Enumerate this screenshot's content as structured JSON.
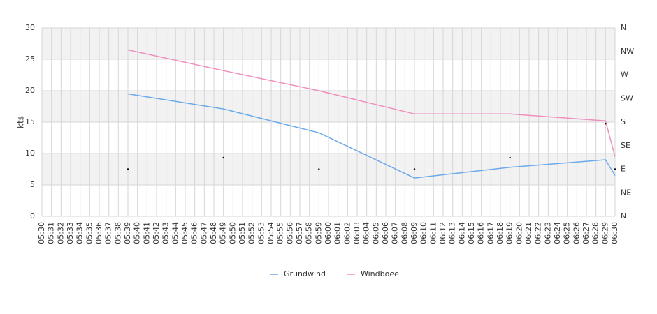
{
  "chart_data": {
    "type": "line",
    "y_label": "kts",
    "categories": [
      "05:30",
      "05:31",
      "05:32",
      "05:33",
      "05:34",
      "05:35",
      "05:36",
      "05:37",
      "05:38",
      "05:39",
      "05:40",
      "05:41",
      "05:42",
      "05:43",
      "05:44",
      "05:45",
      "05:46",
      "05:47",
      "05:48",
      "05:49",
      "05:50",
      "05:51",
      "05:52",
      "05:53",
      "05:54",
      "05:55",
      "05:56",
      "05:57",
      "05:58",
      "05:59",
      "06:00",
      "06:01",
      "06:02",
      "06:03",
      "06:04",
      "06:05",
      "06:06",
      "06:07",
      "06:08",
      "06:09",
      "06:10",
      "06:11",
      "06:12",
      "06:13",
      "06:14",
      "06:15",
      "06:16",
      "06:17",
      "06:18",
      "06:19",
      "06:20",
      "06:21",
      "06:22",
      "06:23",
      "06:24",
      "06:25",
      "06:26",
      "06:27",
      "06:28",
      "06:29",
      "06:30"
    ],
    "x": [
      "05:39",
      "05:49",
      "05:59",
      "06:09",
      "06:19",
      "06:29",
      "06:30"
    ],
    "series": [
      {
        "name": "Grundwind",
        "color": "#6aaaea",
        "values": [
          19.5,
          17.1,
          13.3,
          6.1,
          7.8,
          9.0,
          6.5
        ]
      },
      {
        "name": "Windboee",
        "color": "#ef8fbf",
        "values": [
          26.5,
          23.2,
          20.0,
          16.3,
          16.3,
          15.2,
          9.5
        ]
      },
      {
        "color": "#000000",
        "axis": "y2",
        "values": [
          90,
          112,
          90,
          90,
          112,
          177,
          90
        ]
      }
    ],
    "ylim": [
      0,
      30
    ],
    "yticks": [
      0,
      5,
      10,
      15,
      20,
      25,
      30
    ],
    "y2lim": [
      0,
      360
    ],
    "y2ticks": [
      {
        "value": 0,
        "label": "N"
      },
      {
        "value": 45,
        "label": "NE"
      },
      {
        "value": 90,
        "label": "E"
      },
      {
        "value": 135,
        "label": "SE"
      },
      {
        "value": 180,
        "label": "S"
      },
      {
        "value": 225,
        "label": "SW"
      },
      {
        "value": 270,
        "label": "W"
      },
      {
        "value": 315,
        "label": "NW"
      },
      {
        "value": 360,
        "label": "N"
      }
    ],
    "grid": true,
    "legend": "bottom"
  }
}
